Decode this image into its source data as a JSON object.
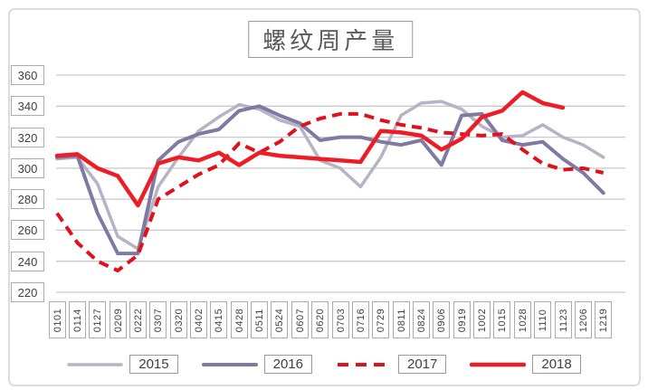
{
  "chart_data": {
    "type": "line",
    "title": "螺纹周产量",
    "categories": [
      "0101",
      "0114",
      "0127",
      "0209",
      "0222",
      "0307",
      "0320",
      "0402",
      "0415",
      "0428",
      "0511",
      "0524",
      "0607",
      "0620",
      "0703",
      "0716",
      "0729",
      "0811",
      "0824",
      "0906",
      "0919",
      "1002",
      "1015",
      "1028",
      "1110",
      "1123",
      "1206",
      "1219"
    ],
    "series": [
      {
        "name": "2015",
        "color": "#b7b3c6",
        "style": "solid",
        "width": 3.5,
        "values": [
          306,
          307,
          290,
          256,
          248,
          288,
          307,
          324,
          333,
          341,
          338,
          331,
          327,
          305,
          300,
          288,
          307,
          334,
          342,
          343,
          338,
          327,
          320,
          321,
          328,
          320,
          315,
          307
        ]
      },
      {
        "name": "2016",
        "color": "#8079a3",
        "style": "solid",
        "width": 4,
        "values": [
          307,
          308,
          271,
          245,
          245,
          305,
          317,
          322,
          325,
          337,
          340,
          334,
          329,
          318,
          320,
          320,
          317,
          315,
          318,
          302,
          334,
          335,
          318,
          315,
          317,
          306,
          297,
          284
        ]
      },
      {
        "name": "2017",
        "color": "#e0101d",
        "style": "dashed",
        "width": 4,
        "values": [
          271,
          252,
          240,
          234,
          244,
          280,
          288,
          296,
          302,
          316,
          310,
          317,
          327,
          332,
          335,
          335,
          331,
          328,
          326,
          323,
          322,
          321,
          322,
          312,
          303,
          299,
          300,
          297
        ]
      },
      {
        "name": "2018",
        "color": "#ee1c25",
        "style": "solid",
        "width": 4.5,
        "values": [
          308,
          309,
          300,
          295,
          276,
          303,
          307,
          305,
          310,
          302,
          310,
          308,
          307,
          306,
          305,
          304,
          324,
          323,
          321,
          312,
          319,
          333,
          337,
          349,
          342,
          339,
          null,
          null
        ]
      }
    ],
    "ylim": [
      220,
      360
    ],
    "yticks": [
      360,
      340,
      320,
      300,
      280,
      260,
      240,
      220
    ],
    "grid": true,
    "grid_color": "#c9c9c9",
    "legend_position": "bottom"
  }
}
